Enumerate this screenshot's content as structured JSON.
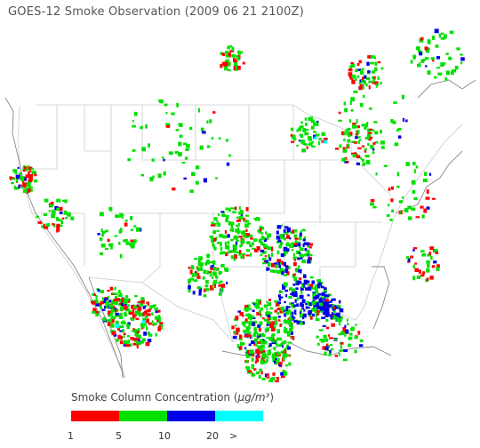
{
  "title": "GOES-12 Smoke Observation (2009 06 21  2100Z)",
  "legend": {
    "title": "Smoke Column Concentration (",
    "unit": "µg/m³",
    "title_close": ")",
    "bins": [
      {
        "color": "#ff0000",
        "low": 1,
        "high": 5
      },
      {
        "color": "#00e000",
        "low": 5,
        "high": 10
      },
      {
        "color": "#0000e6",
        "low": 10,
        "high": 20
      },
      {
        "color": "#00ffff",
        "low": 20,
        "high": null
      }
    ],
    "tick_labels": [
      "1",
      "5",
      "10",
      "20",
      ">"
    ]
  }
}
